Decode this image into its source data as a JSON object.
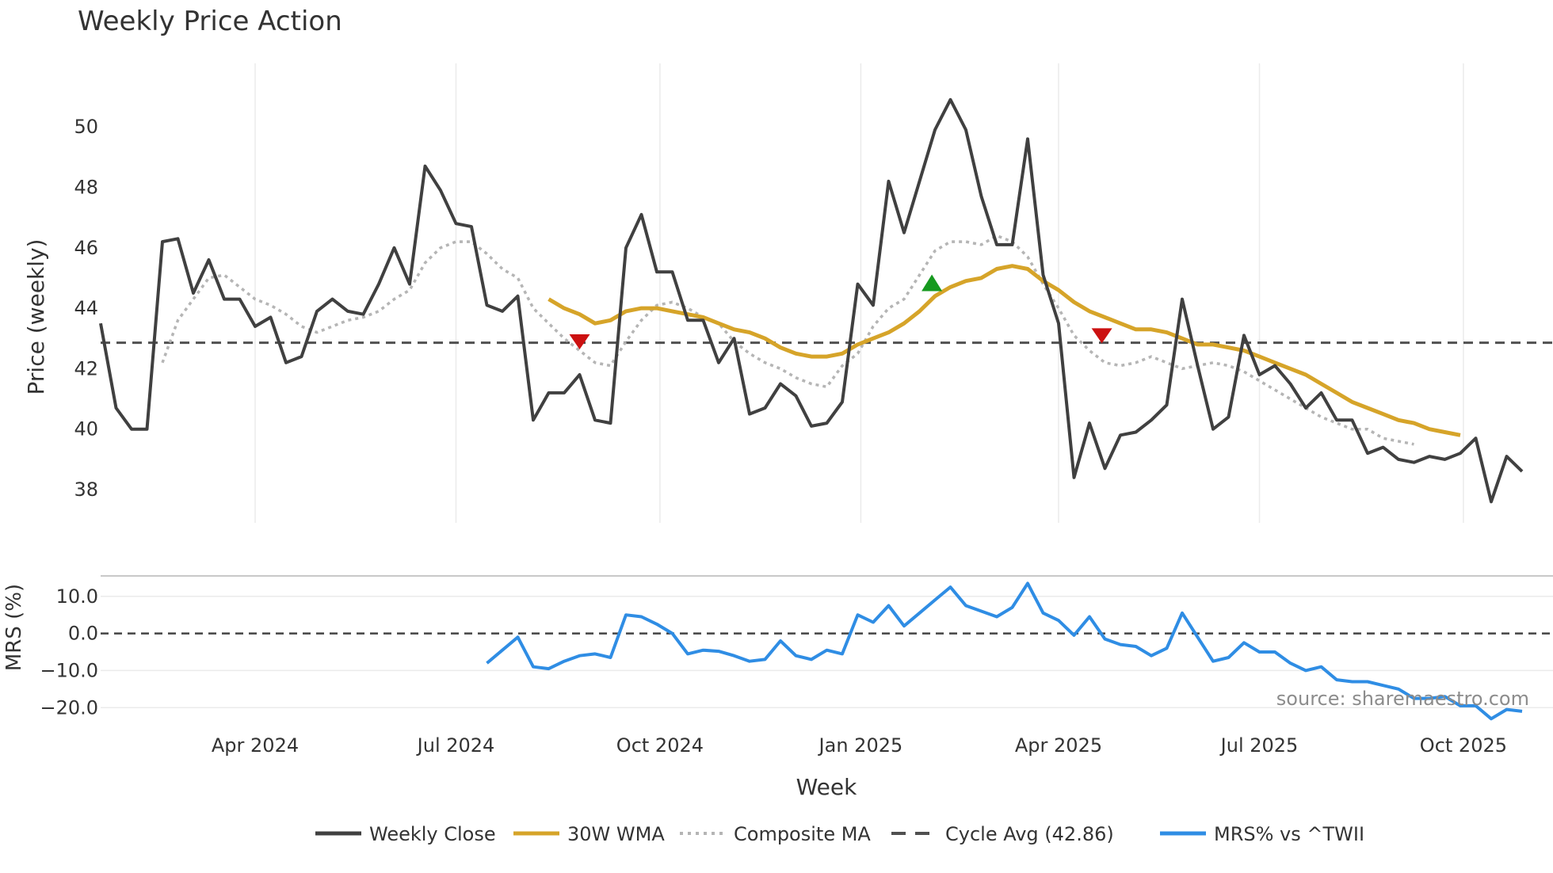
{
  "title": "Weekly Price Action",
  "source": "source: sharemaestro.com",
  "colors": {
    "close": "#404040",
    "wma": "#d6a429",
    "composite": "#b5b5b5",
    "cycle": "#505050",
    "mrs": "#2f8de4",
    "sell": "#cc1111",
    "buy": "#16991f",
    "grid": "#ebebeb",
    "text": "#333333"
  },
  "chart_data": [
    {
      "type": "line",
      "panel": "price",
      "title": "Weekly Price Action",
      "xlabel": "Week",
      "ylabel": "Price (weekly)",
      "ylim": [
        36.9,
        52.1
      ],
      "yticks": [
        38,
        40,
        42,
        44,
        46,
        48,
        50
      ],
      "xlim": [
        0,
        94
      ],
      "x_ticks": [
        {
          "label": "Apr 2024",
          "x": 10
        },
        {
          "label": "Jul 2024",
          "x": 23
        },
        {
          "label": "Oct 2024",
          "x": 36.2
        },
        {
          "label": "Jan 2025",
          "x": 49.2
        },
        {
          "label": "Apr 2025",
          "x": 62
        },
        {
          "label": "Jul 2025",
          "x": 75
        },
        {
          "label": "Oct 2025",
          "x": 88.2
        }
      ],
      "series": [
        {
          "name": "Weekly Close",
          "key": "close",
          "x_start": 0,
          "values": [
            43.5,
            40.7,
            40.0,
            40.0,
            46.2,
            46.3,
            44.5,
            45.6,
            44.3,
            44.3,
            43.4,
            43.7,
            42.2,
            42.4,
            43.9,
            44.3,
            43.9,
            43.8,
            44.8,
            46.0,
            44.8,
            48.7,
            47.9,
            46.8,
            46.7,
            44.1,
            43.9,
            44.4,
            40.3,
            41.2,
            41.2,
            41.8,
            40.3,
            40.2,
            46.0,
            47.1,
            45.2,
            45.2,
            43.6,
            43.6,
            42.2,
            43.0,
            40.5,
            40.7,
            41.5,
            41.1,
            40.1,
            40.2,
            40.9,
            44.8,
            44.1,
            48.2,
            46.5,
            48.2,
            49.9,
            50.9,
            49.9,
            47.7,
            46.1,
            46.1,
            49.6,
            45.1,
            43.5,
            38.4,
            40.2,
            38.7,
            39.8,
            39.9,
            40.3,
            40.8,
            44.3,
            42.1,
            40.0,
            40.4,
            43.1,
            41.8,
            42.1,
            41.5,
            40.7,
            41.2,
            40.3,
            40.3,
            39.2,
            39.4,
            39.0,
            38.9,
            39.1,
            39.0,
            39.2,
            39.7,
            37.6,
            39.1,
            38.6
          ]
        },
        {
          "name": "30W WMA",
          "key": "wma",
          "x_start": 29,
          "values": [
            44.3,
            44.0,
            43.8,
            43.5,
            43.6,
            43.9,
            44.0,
            44.0,
            43.9,
            43.8,
            43.7,
            43.5,
            43.3,
            43.2,
            43.0,
            42.7,
            42.5,
            42.4,
            42.4,
            42.5,
            42.8,
            43.0,
            43.2,
            43.5,
            43.9,
            44.4,
            44.7,
            44.9,
            45.0,
            45.3,
            45.4,
            45.3,
            44.9,
            44.6,
            44.2,
            43.9,
            43.7,
            43.5,
            43.3,
            43.3,
            43.2,
            43.0,
            42.8,
            42.8,
            42.7,
            42.6,
            42.4,
            42.2,
            42.0,
            41.8,
            41.5,
            41.2,
            40.9,
            40.7,
            40.5,
            40.3,
            40.2,
            40.0,
            39.9,
            39.8
          ]
        },
        {
          "name": "Composite MA",
          "key": "composite",
          "x_start": 4,
          "dash": "4,5",
          "values": [
            42.2,
            43.6,
            44.3,
            45.0,
            45.1,
            44.7,
            44.3,
            44.1,
            43.8,
            43.4,
            43.2,
            43.4,
            43.6,
            43.7,
            43.9,
            44.3,
            44.6,
            45.5,
            46.0,
            46.2,
            46.2,
            45.8,
            45.3,
            45.0,
            44.0,
            43.5,
            43.0,
            42.6,
            42.2,
            42.1,
            42.9,
            43.6,
            44.1,
            44.2,
            44.0,
            43.7,
            43.5,
            42.9,
            42.5,
            42.2,
            42.0,
            41.7,
            41.5,
            41.4,
            42.1,
            42.5,
            43.4,
            44.0,
            44.3,
            45.1,
            45.9,
            46.2,
            46.2,
            46.1,
            46.4,
            46.2,
            45.7,
            44.8,
            44.0,
            43.1,
            42.6,
            42.2,
            42.1,
            42.2,
            42.4,
            42.2,
            42.0,
            42.1,
            42.2,
            42.1,
            41.9,
            41.6,
            41.3,
            41.0,
            40.7,
            40.4,
            40.2,
            40.0,
            40.0,
            39.7,
            39.6,
            39.5
          ]
        },
        {
          "name": "Cycle Avg (42.86)",
          "key": "cycle",
          "constant": 42.86,
          "dash": "12,8"
        }
      ],
      "markers": [
        {
          "type": "sell",
          "x": 31,
          "y": 42.9
        },
        {
          "type": "buy",
          "x": 53.8,
          "y": 44.8
        },
        {
          "type": "sell",
          "x": 64.8,
          "y": 43.1
        }
      ]
    },
    {
      "type": "line",
      "panel": "mrs",
      "ylabel": "MRS (%)",
      "ylim": [
        -24,
        15.5
      ],
      "yticks": [
        10.0,
        0.0,
        -10.0,
        -20.0
      ],
      "ytick_labels": [
        "10.0",
        "0.0",
        "−10.0",
        "−20.0"
      ],
      "series": [
        {
          "name": "MRS% vs ^TWII",
          "key": "mrs",
          "x_start": 25,
          "values": [
            -8.0,
            -4.5,
            -1.0,
            -9.0,
            -9.5,
            -7.5,
            -6.0,
            -5.5,
            -6.5,
            5.0,
            4.5,
            2.5,
            0.0,
            -5.5,
            -4.5,
            -4.8,
            -6.0,
            -7.5,
            -7.0,
            -2.0,
            -6.0,
            -7.0,
            -4.5,
            -5.5,
            5.0,
            3.0,
            7.5,
            2.0,
            5.5,
            9.0,
            12.5,
            7.5,
            6.0,
            4.5,
            7.0,
            13.5,
            5.5,
            3.5,
            -0.5,
            4.5,
            -1.5,
            -3.0,
            -3.5,
            -6.0,
            -4.0,
            5.5,
            -1.0,
            -7.5,
            -6.5,
            -2.5,
            -5.0,
            -5.0,
            -8.0,
            -10.0,
            -9.0,
            -12.5,
            -13.0,
            -13.0,
            -14.0,
            -15.0,
            -17.5,
            -17.5,
            -17.0,
            -19.5,
            -19.5,
            -23.0,
            -20.5,
            -21.0
          ]
        },
        {
          "name": "Zero",
          "key": "zero",
          "constant": 0.0,
          "dash": "10,7"
        }
      ]
    }
  ],
  "legend": [
    {
      "label": "Weekly Close",
      "key": "close",
      "style": "solid"
    },
    {
      "label": "30W WMA",
      "key": "wma",
      "style": "solid"
    },
    {
      "label": "Composite MA",
      "key": "composite",
      "style": "dotted"
    },
    {
      "label": "Cycle Avg (42.86)",
      "key": "cycle",
      "style": "dashed"
    },
    {
      "label": "MRS% vs ^TWII",
      "key": "mrs",
      "style": "solid"
    }
  ]
}
